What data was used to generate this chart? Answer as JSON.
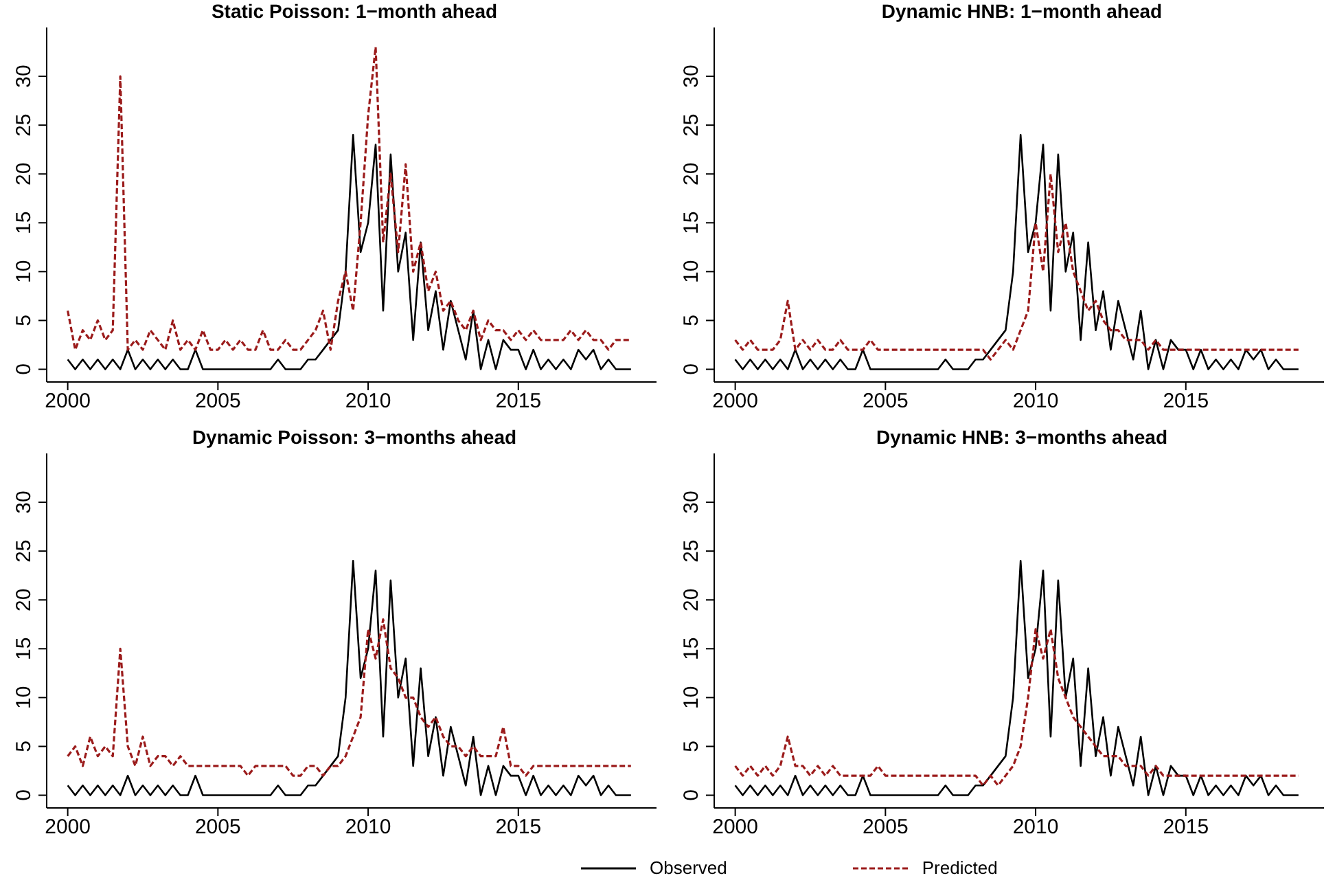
{
  "chart_data": [
    {
      "type": "line",
      "title": "Static Poisson: 1−month ahead",
      "x": [
        2000,
        2000.25,
        2000.5,
        2000.75,
        2001,
        2001.25,
        2001.5,
        2001.75,
        2002,
        2002.25,
        2002.5,
        2002.75,
        2003,
        2003.25,
        2003.5,
        2003.75,
        2004,
        2004.25,
        2004.5,
        2004.75,
        2005,
        2005.25,
        2005.5,
        2005.75,
        2006,
        2006.25,
        2006.5,
        2006.75,
        2007,
        2007.25,
        2007.5,
        2007.75,
        2008,
        2008.25,
        2008.5,
        2008.75,
        2009,
        2009.25,
        2009.5,
        2009.75,
        2010,
        2010.25,
        2010.5,
        2010.75,
        2011,
        2011.25,
        2011.5,
        2011.75,
        2012,
        2012.25,
        2012.5,
        2012.75,
        2013,
        2013.25,
        2013.5,
        2013.75,
        2014,
        2014.25,
        2014.5,
        2014.75,
        2015,
        2015.25,
        2015.5,
        2015.75,
        2016,
        2016.25,
        2016.5,
        2016.75,
        2017,
        2017.25,
        2017.5,
        2017.75,
        2018,
        2018.25,
        2018.5,
        2018.75
      ],
      "xlim": [
        1999.3,
        2019.6
      ],
      "xticks": [
        2000,
        2005,
        2010,
        2015
      ],
      "ylim": [
        -1.3,
        35
      ],
      "yticks": [
        0,
        5,
        10,
        15,
        20,
        25,
        30
      ],
      "series": [
        {
          "color": "#000000",
          "line_style": "solid",
          "values": [
            1,
            0,
            1,
            0,
            1,
            0,
            1,
            0,
            2,
            0,
            1,
            0,
            1,
            0,
            1,
            0,
            0,
            2,
            0,
            0,
            0,
            0,
            0,
            0,
            0,
            0,
            0,
            0,
            1,
            0,
            0,
            0,
            1,
            1,
            2,
            3,
            4,
            10,
            24,
            12,
            15,
            23,
            6,
            22,
            10,
            14,
            3,
            13,
            4,
            8,
            2,
            7,
            4,
            1,
            6,
            0,
            3,
            0,
            3,
            2,
            2,
            0,
            2,
            0,
            1,
            0,
            1,
            0,
            2,
            1,
            2,
            0,
            1,
            0,
            0,
            0
          ]
        },
        {
          "color": "#9b1b1b",
          "line_style": "dashed",
          "values": [
            6,
            2,
            4,
            3,
            5,
            3,
            4,
            30,
            2,
            3,
            2,
            4,
            3,
            2,
            5,
            2,
            3,
            2,
            4,
            2,
            2,
            3,
            2,
            3,
            2,
            2,
            4,
            2,
            2,
            3,
            2,
            2,
            3,
            4,
            6,
            2,
            7,
            10,
            6,
            15,
            26,
            33,
            13,
            20,
            12,
            21,
            10,
            13,
            8,
            10,
            6,
            7,
            5,
            4,
            6,
            3,
            5,
            4,
            4,
            3,
            4,
            3,
            4,
            3,
            3,
            3,
            3,
            4,
            3,
            4,
            3,
            3,
            2,
            3,
            3,
            3
          ]
        }
      ]
    },
    {
      "type": "line",
      "title": "Dynamic HNB: 1−month ahead",
      "x": [
        2000,
        2000.25,
        2000.5,
        2000.75,
        2001,
        2001.25,
        2001.5,
        2001.75,
        2002,
        2002.25,
        2002.5,
        2002.75,
        2003,
        2003.25,
        2003.5,
        2003.75,
        2004,
        2004.25,
        2004.5,
        2004.75,
        2005,
        2005.25,
        2005.5,
        2005.75,
        2006,
        2006.25,
        2006.5,
        2006.75,
        2007,
        2007.25,
        2007.5,
        2007.75,
        2008,
        2008.25,
        2008.5,
        2008.75,
        2009,
        2009.25,
        2009.5,
        2009.75,
        2010,
        2010.25,
        2010.5,
        2010.75,
        2011,
        2011.25,
        2011.5,
        2011.75,
        2012,
        2012.25,
        2012.5,
        2012.75,
        2013,
        2013.25,
        2013.5,
        2013.75,
        2014,
        2014.25,
        2014.5,
        2014.75,
        2015,
        2015.25,
        2015.5,
        2015.75,
        2016,
        2016.25,
        2016.5,
        2016.75,
        2017,
        2017.25,
        2017.5,
        2017.75,
        2018,
        2018.25,
        2018.5,
        2018.75
      ],
      "xlim": [
        1999.3,
        2019.6
      ],
      "xticks": [
        2000,
        2005,
        2010,
        2015
      ],
      "ylim": [
        -1.3,
        35
      ],
      "yticks": [
        0,
        5,
        10,
        15,
        20,
        25,
        30
      ],
      "series": [
        {
          "color": "#000000",
          "line_style": "solid",
          "values": [
            1,
            0,
            1,
            0,
            1,
            0,
            1,
            0,
            2,
            0,
            1,
            0,
            1,
            0,
            1,
            0,
            0,
            2,
            0,
            0,
            0,
            0,
            0,
            0,
            0,
            0,
            0,
            0,
            1,
            0,
            0,
            0,
            1,
            1,
            2,
            3,
            4,
            10,
            24,
            12,
            15,
            23,
            6,
            22,
            10,
            14,
            3,
            13,
            4,
            8,
            2,
            7,
            4,
            1,
            6,
            0,
            3,
            0,
            3,
            2,
            2,
            0,
            2,
            0,
            1,
            0,
            1,
            0,
            2,
            1,
            2,
            0,
            1,
            0,
            0,
            0
          ]
        },
        {
          "color": "#9b1b1b",
          "line_style": "dashed",
          "values": [
            3,
            2,
            3,
            2,
            2,
            2,
            3,
            7,
            2,
            3,
            2,
            3,
            2,
            2,
            3,
            2,
            2,
            2,
            3,
            2,
            2,
            2,
            2,
            2,
            2,
            2,
            2,
            2,
            2,
            2,
            2,
            2,
            2,
            2,
            1,
            2,
            3,
            2,
            4,
            6,
            15,
            10,
            20,
            12,
            15,
            10,
            8,
            6,
            7,
            5,
            4,
            4,
            3,
            3,
            3,
            2,
            3,
            2,
            2,
            2,
            2,
            2,
            2,
            2,
            2,
            2,
            2,
            2,
            2,
            2,
            2,
            2,
            2,
            2,
            2,
            2
          ]
        }
      ]
    },
    {
      "type": "line",
      "title": "Dynamic Poisson: 3−months ahead",
      "x": [
        2000,
        2000.25,
        2000.5,
        2000.75,
        2001,
        2001.25,
        2001.5,
        2001.75,
        2002,
        2002.25,
        2002.5,
        2002.75,
        2003,
        2003.25,
        2003.5,
        2003.75,
        2004,
        2004.25,
        2004.5,
        2004.75,
        2005,
        2005.25,
        2005.5,
        2005.75,
        2006,
        2006.25,
        2006.5,
        2006.75,
        2007,
        2007.25,
        2007.5,
        2007.75,
        2008,
        2008.25,
        2008.5,
        2008.75,
        2009,
        2009.25,
        2009.5,
        2009.75,
        2010,
        2010.25,
        2010.5,
        2010.75,
        2011,
        2011.25,
        2011.5,
        2011.75,
        2012,
        2012.25,
        2012.5,
        2012.75,
        2013,
        2013.25,
        2013.5,
        2013.75,
        2014,
        2014.25,
        2014.5,
        2014.75,
        2015,
        2015.25,
        2015.5,
        2015.75,
        2016,
        2016.25,
        2016.5,
        2016.75,
        2017,
        2017.25,
        2017.5,
        2017.75,
        2018,
        2018.25,
        2018.5,
        2018.75
      ],
      "xlim": [
        1999.3,
        2019.6
      ],
      "xticks": [
        2000,
        2005,
        2010,
        2015
      ],
      "ylim": [
        -1.3,
        35
      ],
      "yticks": [
        0,
        5,
        10,
        15,
        20,
        25,
        30
      ],
      "series": [
        {
          "color": "#000000",
          "line_style": "solid",
          "values": [
            1,
            0,
            1,
            0,
            1,
            0,
            1,
            0,
            2,
            0,
            1,
            0,
            1,
            0,
            1,
            0,
            0,
            2,
            0,
            0,
            0,
            0,
            0,
            0,
            0,
            0,
            0,
            0,
            1,
            0,
            0,
            0,
            1,
            1,
            2,
            3,
            4,
            10,
            24,
            12,
            15,
            23,
            6,
            22,
            10,
            14,
            3,
            13,
            4,
            8,
            2,
            7,
            4,
            1,
            6,
            0,
            3,
            0,
            3,
            2,
            2,
            0,
            2,
            0,
            1,
            0,
            1,
            0,
            2,
            1,
            2,
            0,
            1,
            0,
            0,
            0
          ]
        },
        {
          "color": "#9b1b1b",
          "line_style": "dashed",
          "values": [
            4,
            5,
            3,
            6,
            4,
            5,
            4,
            15,
            5,
            3,
            6,
            3,
            4,
            4,
            3,
            4,
            3,
            3,
            3,
            3,
            3,
            3,
            3,
            3,
            2,
            3,
            3,
            3,
            3,
            3,
            2,
            2,
            3,
            3,
            2,
            3,
            3,
            4,
            6,
            8,
            17,
            14,
            18,
            13,
            12,
            10,
            10,
            8,
            7,
            8,
            6,
            5,
            5,
            4,
            5,
            4,
            4,
            4,
            7,
            3,
            3,
            2,
            3,
            3,
            3,
            3,
            3,
            3,
            3,
            3,
            3,
            3,
            3,
            3,
            3,
            3
          ]
        }
      ]
    },
    {
      "type": "line",
      "title": "Dynamic HNB: 3−months ahead",
      "x": [
        2000,
        2000.25,
        2000.5,
        2000.75,
        2001,
        2001.25,
        2001.5,
        2001.75,
        2002,
        2002.25,
        2002.5,
        2002.75,
        2003,
        2003.25,
        2003.5,
        2003.75,
        2004,
        2004.25,
        2004.5,
        2004.75,
        2005,
        2005.25,
        2005.5,
        2005.75,
        2006,
        2006.25,
        2006.5,
        2006.75,
        2007,
        2007.25,
        2007.5,
        2007.75,
        2008,
        2008.25,
        2008.5,
        2008.75,
        2009,
        2009.25,
        2009.5,
        2009.75,
        2010,
        2010.25,
        2010.5,
        2010.75,
        2011,
        2011.25,
        2011.5,
        2011.75,
        2012,
        2012.25,
        2012.5,
        2012.75,
        2013,
        2013.25,
        2013.5,
        2013.75,
        2014,
        2014.25,
        2014.5,
        2014.75,
        2015,
        2015.25,
        2015.5,
        2015.75,
        2016,
        2016.25,
        2016.5,
        2016.75,
        2017,
        2017.25,
        2017.5,
        2017.75,
        2018,
        2018.25,
        2018.5,
        2018.75
      ],
      "xlim": [
        1999.3,
        2019.6
      ],
      "xticks": [
        2000,
        2005,
        2010,
        2015
      ],
      "ylim": [
        -1.3,
        35
      ],
      "yticks": [
        0,
        5,
        10,
        15,
        20,
        25,
        30
      ],
      "legend": "bottom",
      "series": [
        {
          "name": "Observed",
          "color": "#000000",
          "line_style": "solid",
          "values": [
            1,
            0,
            1,
            0,
            1,
            0,
            1,
            0,
            2,
            0,
            1,
            0,
            1,
            0,
            1,
            0,
            0,
            2,
            0,
            0,
            0,
            0,
            0,
            0,
            0,
            0,
            0,
            0,
            1,
            0,
            0,
            0,
            1,
            1,
            2,
            3,
            4,
            10,
            24,
            12,
            15,
            23,
            6,
            22,
            10,
            14,
            3,
            13,
            4,
            8,
            2,
            7,
            4,
            1,
            6,
            0,
            3,
            0,
            3,
            2,
            2,
            0,
            2,
            0,
            1,
            0,
            1,
            0,
            2,
            1,
            2,
            0,
            1,
            0,
            0,
            0
          ]
        },
        {
          "name": "Predicted",
          "color": "#9b1b1b",
          "line_style": "dashed",
          "values": [
            3,
            2,
            3,
            2,
            3,
            2,
            3,
            6,
            3,
            3,
            2,
            3,
            2,
            3,
            2,
            2,
            2,
            2,
            2,
            3,
            2,
            2,
            2,
            2,
            2,
            2,
            2,
            2,
            2,
            2,
            2,
            2,
            2,
            1,
            2,
            1,
            2,
            3,
            5,
            10,
            17,
            14,
            17,
            12,
            10,
            8,
            7,
            6,
            5,
            4,
            4,
            4,
            3,
            3,
            3,
            2,
            3,
            2,
            2,
            2,
            2,
            2,
            2,
            2,
            2,
            2,
            2,
            2,
            2,
            2,
            2,
            2,
            2,
            2,
            2,
            2
          ]
        }
      ]
    }
  ]
}
